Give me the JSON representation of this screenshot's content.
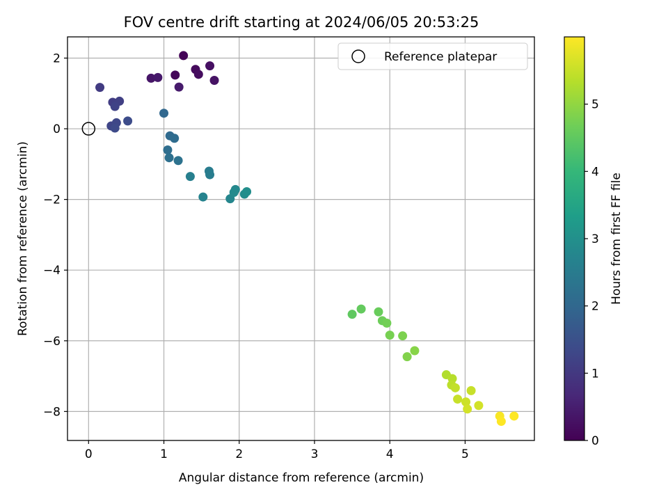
{
  "chart_data": {
    "type": "scatter",
    "title": "FOV centre drift starting at 2024/06/05 20:53:25",
    "xlabel": "Angular distance from reference (arcmin)",
    "ylabel": "Rotation from reference (arcmin)",
    "xlim": [
      -0.28,
      5.92
    ],
    "ylim": [
      -8.82,
      2.6
    ],
    "xticks": [
      0,
      1,
      2,
      3,
      4,
      5
    ],
    "yticks": [
      2,
      0,
      -2,
      -4,
      -6,
      -8
    ],
    "grid": true,
    "legend": {
      "position": "top-right",
      "entries": [
        "Reference platepar"
      ]
    },
    "reference_point": {
      "x": 0,
      "y": 0,
      "label": "Reference platepar"
    },
    "colorbar": {
      "label": "Hours from first FF file",
      "range": [
        0,
        6
      ],
      "ticks": [
        0,
        1,
        2,
        3,
        4,
        5
      ],
      "colormap": "viridis"
    },
    "points": [
      {
        "x": 1.26,
        "y": 2.07,
        "hours": 0.05
      },
      {
        "x": 1.15,
        "y": 1.52,
        "hours": 0.1
      },
      {
        "x": 1.42,
        "y": 1.68,
        "hours": 0.15
      },
      {
        "x": 1.46,
        "y": 1.54,
        "hours": 0.2
      },
      {
        "x": 1.61,
        "y": 1.78,
        "hours": 0.25
      },
      {
        "x": 1.67,
        "y": 1.37,
        "hours": 0.3
      },
      {
        "x": 0.83,
        "y": 1.43,
        "hours": 0.35
      },
      {
        "x": 0.92,
        "y": 1.45,
        "hours": 0.4
      },
      {
        "x": 1.2,
        "y": 1.18,
        "hours": 0.45
      },
      {
        "x": 0.15,
        "y": 1.17,
        "hours": 1.05
      },
      {
        "x": 0.32,
        "y": 0.75,
        "hours": 1.1
      },
      {
        "x": 0.36,
        "y": 0.72,
        "hours": 1.12
      },
      {
        "x": 0.41,
        "y": 0.78,
        "hours": 1.15
      },
      {
        "x": 0.35,
        "y": 0.63,
        "hours": 1.2
      },
      {
        "x": 0.3,
        "y": 0.08,
        "hours": 1.25
      },
      {
        "x": 0.37,
        "y": 0.17,
        "hours": 1.3
      },
      {
        "x": 0.35,
        "y": 0.02,
        "hours": 1.35
      },
      {
        "x": 0.52,
        "y": 0.22,
        "hours": 1.4
      },
      {
        "x": 1.0,
        "y": 0.44,
        "hours": 2.0
      },
      {
        "x": 1.08,
        "y": -0.2,
        "hours": 2.05
      },
      {
        "x": 1.14,
        "y": -0.27,
        "hours": 2.1
      },
      {
        "x": 1.05,
        "y": -0.6,
        "hours": 2.15
      },
      {
        "x": 1.07,
        "y": -0.82,
        "hours": 2.2
      },
      {
        "x": 1.19,
        "y": -0.9,
        "hours": 2.25
      },
      {
        "x": 1.6,
        "y": -1.2,
        "hours": 2.5
      },
      {
        "x": 1.61,
        "y": -1.3,
        "hours": 2.55
      },
      {
        "x": 1.35,
        "y": -1.35,
        "hours": 2.6
      },
      {
        "x": 1.52,
        "y": -1.93,
        "hours": 2.7
      },
      {
        "x": 1.88,
        "y": -1.98,
        "hours": 2.75
      },
      {
        "x": 1.95,
        "y": -1.72,
        "hours": 2.8
      },
      {
        "x": 1.93,
        "y": -1.8,
        "hours": 2.85
      },
      {
        "x": 2.07,
        "y": -1.85,
        "hours": 2.9
      },
      {
        "x": 2.1,
        "y": -1.78,
        "hours": 2.95
      },
      {
        "x": 3.5,
        "y": -5.25,
        "hours": 4.5
      },
      {
        "x": 3.62,
        "y": -5.1,
        "hours": 4.55
      },
      {
        "x": 3.85,
        "y": -5.18,
        "hours": 4.6
      },
      {
        "x": 3.9,
        "y": -5.43,
        "hours": 4.65
      },
      {
        "x": 3.96,
        "y": -5.5,
        "hours": 4.7
      },
      {
        "x": 4.0,
        "y": -5.84,
        "hours": 4.75
      },
      {
        "x": 4.17,
        "y": -5.86,
        "hours": 4.8
      },
      {
        "x": 4.23,
        "y": -6.45,
        "hours": 4.85
      },
      {
        "x": 4.33,
        "y": -6.28,
        "hours": 4.9
      },
      {
        "x": 4.75,
        "y": -6.96,
        "hours": 5.3
      },
      {
        "x": 4.83,
        "y": -7.07,
        "hours": 5.35
      },
      {
        "x": 4.82,
        "y": -7.25,
        "hours": 5.4
      },
      {
        "x": 4.87,
        "y": -7.33,
        "hours": 5.45
      },
      {
        "x": 4.9,
        "y": -7.65,
        "hours": 5.5
      },
      {
        "x": 5.01,
        "y": -7.73,
        "hours": 5.55
      },
      {
        "x": 5.03,
        "y": -7.93,
        "hours": 5.6
      },
      {
        "x": 5.08,
        "y": -7.41,
        "hours": 5.5
      },
      {
        "x": 5.18,
        "y": -7.83,
        "hours": 5.6
      },
      {
        "x": 5.46,
        "y": -8.13,
        "hours": 5.95
      },
      {
        "x": 5.48,
        "y": -8.28,
        "hours": 6.0
      },
      {
        "x": 5.65,
        "y": -8.13,
        "hours": 6.0
      }
    ]
  }
}
